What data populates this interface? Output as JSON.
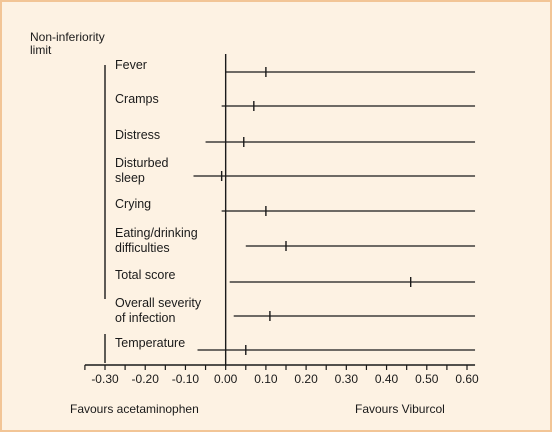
{
  "chart_data": {
    "type": "forest",
    "title": "",
    "limit_label": [
      "Non-inferiority",
      "limit"
    ],
    "categories": [
      {
        "label": [
          "Fever"
        ],
        "low": 0.0,
        "high": 0.62,
        "point": 0.1
      },
      {
        "label": [
          "Cramps"
        ],
        "low": -0.01,
        "high": 0.62,
        "point": 0.07
      },
      {
        "label": [
          "Distress"
        ],
        "low": -0.05,
        "high": 0.62,
        "point": 0.045
      },
      {
        "label": [
          "Disturbed",
          "sleep"
        ],
        "low": -0.08,
        "high": 0.62,
        "point": -0.01
      },
      {
        "label": [
          "Crying"
        ],
        "low": -0.01,
        "high": 0.62,
        "point": 0.1
      },
      {
        "label": [
          "Eating/drinking",
          "difficulties"
        ],
        "low": 0.05,
        "high": 0.62,
        "point": 0.15
      },
      {
        "label": [
          "Total score"
        ],
        "low": 0.01,
        "high": 0.62,
        "point": 0.46
      },
      {
        "label": [
          "Overall severity",
          "of infection"
        ],
        "low": 0.02,
        "high": 0.62,
        "point": 0.11
      },
      {
        "label": [
          "Temperature"
        ],
        "low": -0.07,
        "high": 0.62,
        "point": 0.05
      }
    ],
    "x_ticks": [
      "-0.30",
      "-0.20",
      "-0.10",
      "0.00",
      "0.10",
      "0.20",
      "0.30",
      "0.40",
      "0.50",
      "0.60"
    ],
    "x_tick_values": [
      -0.3,
      -0.2,
      -0.1,
      0.0,
      0.1,
      0.2,
      0.3,
      0.4,
      0.5,
      0.6
    ],
    "xlim": [
      -0.35,
      0.62
    ],
    "non_inferiority_limit": -0.3,
    "reference_line": 0.0,
    "left_note": "Favours acetaminophen",
    "right_note": "Favours Viburcol"
  },
  "colors": {
    "background": "#fdf2e3",
    "border": "#f2c596",
    "ink": "#1a1a1a"
  }
}
